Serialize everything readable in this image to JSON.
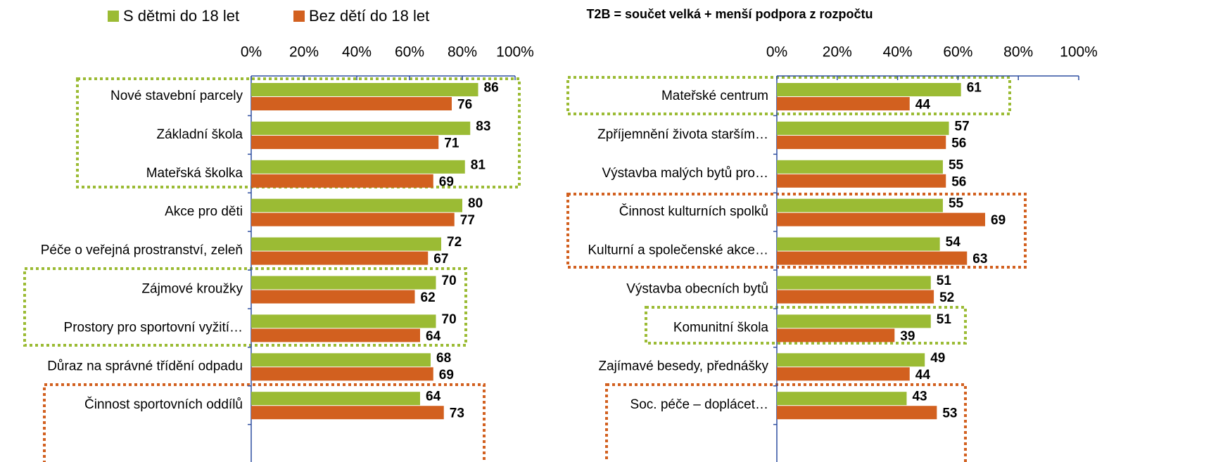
{
  "chart_data": [
    {
      "type": "barh",
      "categories": [
        "Nové stavební parcely",
        "Základní škola",
        "Mateřská školka",
        "Akce pro děti",
        "Péče o veřejná prostranství, zeleň",
        "Zájmové kroužky",
        "Prostory pro sportovní vyžití…",
        "Důraz na správné třídění odpadu",
        "Činnost sportovních oddílů"
      ],
      "series": [
        {
          "name": "S dětmi do 18 let",
          "color": "#9bbb34",
          "values": [
            86,
            83,
            81,
            80,
            72,
            70,
            70,
            68,
            64
          ]
        },
        {
          "name": "Bez dětí do 18 let",
          "color": "#d2601f",
          "values": [
            76,
            71,
            69,
            77,
            67,
            62,
            64,
            69,
            73
          ]
        }
      ],
      "xlim": [
        0,
        100
      ],
      "xticks": [
        {
          "value": 0,
          "label": "0%"
        },
        {
          "value": 20,
          "label": "20%"
        },
        {
          "value": 40,
          "label": "40%"
        },
        {
          "value": 60,
          "label": "60%"
        },
        {
          "value": 80,
          "label": "80%"
        },
        {
          "value": 100,
          "label": "100%"
        }
      ]
    },
    {
      "type": "barh",
      "title": "T2B = součet velká + menší podpora z rozpočtu",
      "categories": [
        "Mateřské centrum",
        "Zpříjemnění života starším…",
        "Výstavba malých bytů pro…",
        "Činnost kulturních spolků",
        "Kulturní a společenské akce…",
        "Výstavba obecních bytů",
        "Komunitní škola",
        "Zajímavé besedy, přednášky",
        "Soc. péče – doplácet…"
      ],
      "series": [
        {
          "color": "#9bbb34",
          "values": [
            61,
            57,
            55,
            55,
            54,
            51,
            51,
            49,
            43
          ]
        },
        {
          "color": "#d2601f",
          "values": [
            44,
            56,
            56,
            69,
            63,
            52,
            39,
            44,
            53
          ]
        }
      ],
      "xlim": [
        0,
        100
      ],
      "xticks": [
        {
          "value": 0,
          "label": "0%"
        },
        {
          "value": 20,
          "label": "20%"
        },
        {
          "value": 40,
          "label": "40%"
        },
        {
          "value": 60,
          "label": "60%"
        },
        {
          "value": 80,
          "label": "80%"
        },
        {
          "value": 100,
          "label": "100%"
        }
      ]
    }
  ]
}
